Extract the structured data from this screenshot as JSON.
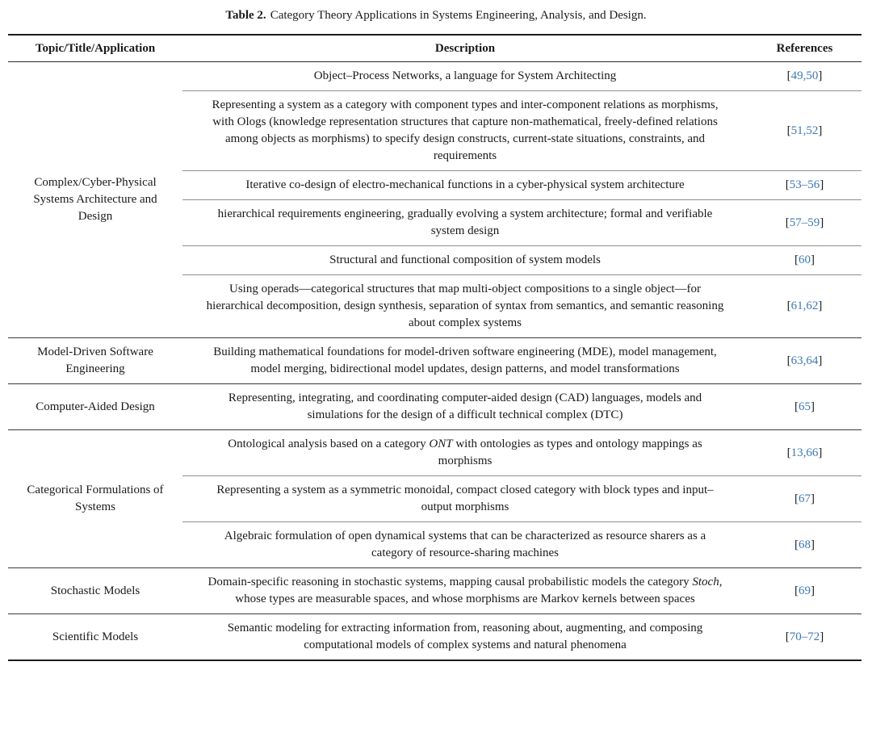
{
  "caption": {
    "label": "Table 2.",
    "text": "Category Theory Applications in Systems Engineering, Analysis, and Design."
  },
  "table": {
    "columns": [
      "Topic/Title/Application",
      "Description",
      "References"
    ],
    "link_color": "#3c78b4",
    "groups": [
      {
        "topic": "Complex/Cyber-Physical Systems Architecture and Design",
        "rows": [
          {
            "desc": [
              {
                "text": "Object–Process Networks, a language for System Architecting"
              }
            ],
            "ref": [
              {
                "text": "[",
                "link": false
              },
              {
                "text": "49,50",
                "link": true
              },
              {
                "text": "]",
                "link": false
              }
            ]
          },
          {
            "desc": [
              {
                "text": "Representing a system as a category with component types and inter-component relations as morphisms, with Ologs (knowledge representation structures that capture non-mathematical, freely-defined relations among objects as morphisms) to specify design constructs, current-state situations, constraints, and requirements"
              }
            ],
            "ref": [
              {
                "text": "[",
                "link": false
              },
              {
                "text": "51,52",
                "link": true
              },
              {
                "text": "]",
                "link": false
              }
            ]
          },
          {
            "desc": [
              {
                "text": "Iterative co-design of electro-mechanical functions in a cyber-physical system architecture"
              }
            ],
            "ref": [
              {
                "text": "[",
                "link": false
              },
              {
                "text": "53–56",
                "link": true
              },
              {
                "text": "]",
                "link": false
              }
            ]
          },
          {
            "desc": [
              {
                "text": "hierarchical requirements engineering, gradually evolving a system architecture; formal and verifiable system design"
              }
            ],
            "ref": [
              {
                "text": "[",
                "link": false
              },
              {
                "text": "57–59",
                "link": true
              },
              {
                "text": "]",
                "link": false
              }
            ]
          },
          {
            "desc": [
              {
                "text": "Structural and functional composition of system models"
              }
            ],
            "ref": [
              {
                "text": "[",
                "link": false
              },
              {
                "text": "60",
                "link": true
              },
              {
                "text": "]",
                "link": false
              }
            ]
          },
          {
            "desc": [
              {
                "text": "Using operads—categorical structures that map multi-object compositions to a single object—for hierarchical decomposition, design synthesis, separation of syntax from semantics, and semantic reasoning about complex systems"
              }
            ],
            "ref": [
              {
                "text": "[",
                "link": false
              },
              {
                "text": "61,62",
                "link": true
              },
              {
                "text": "]",
                "link": false
              }
            ]
          }
        ]
      },
      {
        "topic": "Model-Driven Software Engineering",
        "rows": [
          {
            "desc": [
              {
                "text": "Building mathematical foundations for model-driven software engineering (MDE), model management, model merging, bidirectional model updates, design patterns, and model transformations"
              }
            ],
            "ref": [
              {
                "text": "[",
                "link": false
              },
              {
                "text": "63,64",
                "link": true
              },
              {
                "text": "]",
                "link": false
              }
            ]
          }
        ]
      },
      {
        "topic": "Computer-Aided Design",
        "rows": [
          {
            "desc": [
              {
                "text": "Representing, integrating, and coordinating computer-aided design (CAD) languages, models and simulations for the design of a difficult technical complex (DTC)"
              }
            ],
            "ref": [
              {
                "text": "[",
                "link": false
              },
              {
                "text": "65",
                "link": true
              },
              {
                "text": "]",
                "link": false
              }
            ]
          }
        ]
      },
      {
        "topic": "Categorical Formulations of Systems",
        "rows": [
          {
            "desc": [
              {
                "text": "Ontological analysis based on a category "
              },
              {
                "text": "ONT",
                "italic": true
              },
              {
                "text": " with ontologies as types and ontology mappings as morphisms"
              }
            ],
            "ref": [
              {
                "text": "[",
                "link": false
              },
              {
                "text": "13,66",
                "link": true
              },
              {
                "text": "]",
                "link": false
              }
            ]
          },
          {
            "desc": [
              {
                "text": "Representing a system as a symmetric monoidal, compact closed category with block types and input–output morphisms"
              }
            ],
            "ref": [
              {
                "text": "[",
                "link": false
              },
              {
                "text": "67",
                "link": true
              },
              {
                "text": "]",
                "link": false
              }
            ]
          },
          {
            "desc": [
              {
                "text": "Algebraic formulation of open dynamical systems that can be characterized as resource sharers as a category of resource-sharing machines"
              }
            ],
            "ref": [
              {
                "text": "[",
                "link": false
              },
              {
                "text": "68",
                "link": true
              },
              {
                "text": "]",
                "link": false
              }
            ]
          }
        ]
      },
      {
        "topic": "Stochastic Models",
        "rows": [
          {
            "desc": [
              {
                "text": "Domain-specific reasoning in stochastic systems, mapping causal probabilistic models the category "
              },
              {
                "text": "Stoch",
                "italic": true
              },
              {
                "text": ", whose types are measurable spaces, and whose morphisms are Markov kernels between spaces"
              }
            ],
            "ref": [
              {
                "text": "[",
                "link": false
              },
              {
                "text": "69",
                "link": true
              },
              {
                "text": "]",
                "link": false
              }
            ]
          }
        ]
      },
      {
        "topic": "Scientific Models",
        "rows": [
          {
            "desc": [
              {
                "text": "Semantic modeling for extracting information from, reasoning about, augmenting, and composing computational models of complex systems and natural phenomena"
              }
            ],
            "ref": [
              {
                "text": "[",
                "link": false
              },
              {
                "text": "70–72",
                "link": true
              },
              {
                "text": "]",
                "link": false
              }
            ]
          }
        ]
      }
    ]
  }
}
